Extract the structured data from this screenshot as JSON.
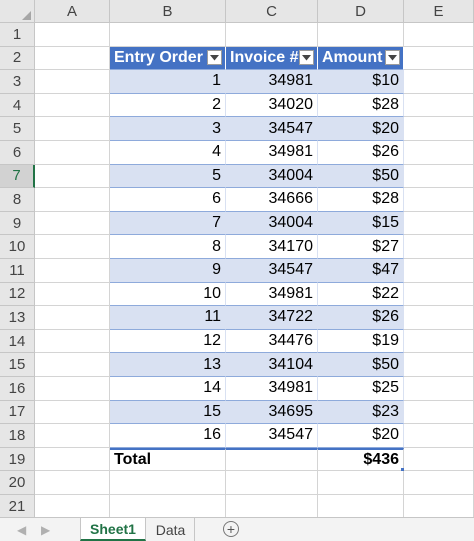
{
  "columns": [
    "A",
    "B",
    "C",
    "D",
    "E"
  ],
  "rows": [
    "1",
    "2",
    "3",
    "4",
    "5",
    "6",
    "7",
    "8",
    "9",
    "10",
    "11",
    "12",
    "13",
    "14",
    "15",
    "16",
    "17",
    "18",
    "19",
    "20",
    "21"
  ],
  "selected_row": "7",
  "table": {
    "headers": [
      "Entry Order",
      "Invoice #",
      "Amount"
    ],
    "rows": [
      [
        "1",
        "34981",
        "$10"
      ],
      [
        "2",
        "34020",
        "$28"
      ],
      [
        "3",
        "34547",
        "$20"
      ],
      [
        "4",
        "34981",
        "$26"
      ],
      [
        "5",
        "34004",
        "$50"
      ],
      [
        "6",
        "34666",
        "$28"
      ],
      [
        "7",
        "34004",
        "$15"
      ],
      [
        "8",
        "34170",
        "$27"
      ],
      [
        "9",
        "34547",
        "$47"
      ],
      [
        "10",
        "34981",
        "$22"
      ],
      [
        "11",
        "34722",
        "$26"
      ],
      [
        "12",
        "34476",
        "$19"
      ],
      [
        "13",
        "34104",
        "$50"
      ],
      [
        "14",
        "34981",
        "$25"
      ],
      [
        "15",
        "34695",
        "$23"
      ],
      [
        "16",
        "34547",
        "$20"
      ]
    ],
    "total_label": "Total",
    "total_value": "$436"
  },
  "sheets": [
    {
      "name": "Sheet1",
      "active": true
    },
    {
      "name": "Data",
      "active": false
    }
  ],
  "colors": {
    "header_fill": "#4472c4",
    "band_fill": "#d9e1f2",
    "excel_green": "#217346"
  },
  "icons": {
    "filter": "dropdown-arrow-icon",
    "nav_prev": "triangle-left-icon",
    "nav_next": "triangle-right-icon",
    "add_sheet": "plus-circle-icon"
  }
}
